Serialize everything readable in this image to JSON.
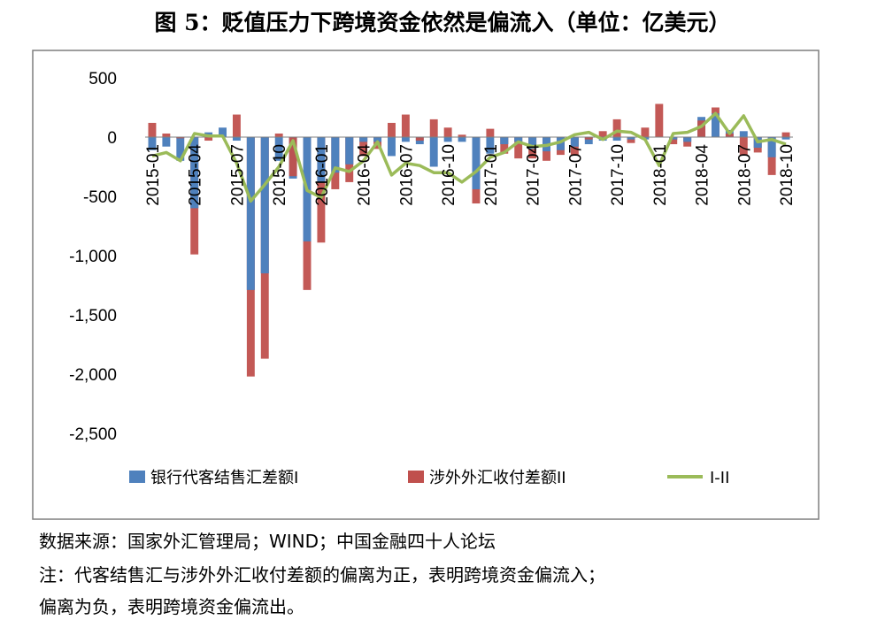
{
  "title": "图 5：贬值压力下跨境资金依然是偏流入（单位：亿美元）",
  "source": "数据来源：国家外汇管理局；WIND；中国金融四十人论坛",
  "note_line1": "注：代客结售汇与涉外外汇收付差额的偏离为正，表明跨境资金偏流入；",
  "note_line2": "偏离为负，表明跨境资金偏流出。",
  "chart_data": {
    "type": "bar",
    "ylim": [
      -2500,
      500
    ],
    "yticks": [
      500,
      0,
      -500,
      -1000,
      -1500,
      -2000,
      -2500
    ],
    "ytick_labels": [
      "500",
      "0",
      "-500",
      "-1,000",
      "-1,500",
      "-2,000",
      "-2,500"
    ],
    "categories": [
      "2015-01",
      "2015-02",
      "2015-03",
      "2015-04",
      "2015-05",
      "2015-06",
      "2015-07",
      "2015-08",
      "2015-09",
      "2015-10",
      "2015-11",
      "2015-12",
      "2016-01",
      "2016-02",
      "2016-03",
      "2016-04",
      "2016-05",
      "2016-06",
      "2016-07",
      "2016-08",
      "2016-09",
      "2016-10",
      "2016-11",
      "2016-12",
      "2017-01",
      "2017-02",
      "2017-03",
      "2017-04",
      "2017-05",
      "2017-06",
      "2017-07",
      "2017-08",
      "2017-09",
      "2017-10",
      "2017-11",
      "2017-12",
      "2018-01",
      "2018-02",
      "2018-03",
      "2018-04",
      "2018-05",
      "2018-06",
      "2018-07",
      "2018-08",
      "2018-09",
      "2018-10"
    ],
    "xtick_labels": [
      {
        "index": 0,
        "label": "2015-01"
      },
      {
        "index": 3,
        "label": "2015-04"
      },
      {
        "index": 6,
        "label": "2015-07"
      },
      {
        "index": 9,
        "label": "2015-10"
      },
      {
        "index": 12,
        "label": "2016-01"
      },
      {
        "index": 15,
        "label": "2016-04"
      },
      {
        "index": 18,
        "label": "2016-07"
      },
      {
        "index": 21,
        "label": "2016-10"
      },
      {
        "index": 24,
        "label": "2017-01"
      },
      {
        "index": 27,
        "label": "2017-04"
      },
      {
        "index": 30,
        "label": "2017-07"
      },
      {
        "index": 33,
        "label": "2017-10"
      },
      {
        "index": 36,
        "label": "2018-01"
      },
      {
        "index": 39,
        "label": "2018-04"
      },
      {
        "index": 42,
        "label": "2018-07"
      },
      {
        "index": 45,
        "label": "2018-10"
      }
    ],
    "series": [
      {
        "name": "银行代客结售汇差额I",
        "type": "bar",
        "color": "#4f81bd",
        "values": [
          -110,
          -80,
          -200,
          -600,
          40,
          80,
          -30,
          -1290,
          -1150,
          -200,
          -350,
          -880,
          -380,
          -300,
          -230,
          -40,
          -40,
          -160,
          -40,
          -60,
          -250,
          -40,
          -40,
          -440,
          -140,
          -60,
          -40,
          -100,
          -120,
          -110,
          -80,
          -60,
          -30,
          -30,
          -20,
          -20,
          0,
          -20,
          -40,
          170,
          200,
          60,
          50,
          -90,
          -170,
          -20
        ]
      },
      {
        "name": "涉外外汇收付差额II",
        "type": "bar",
        "color": "#c0504d",
        "values": [
          120,
          30,
          -10,
          -990,
          -30,
          0,
          190,
          -2020,
          -1870,
          30,
          -330,
          -1290,
          -890,
          -440,
          -380,
          -160,
          -100,
          120,
          190,
          -30,
          150,
          80,
          20,
          -560,
          70,
          -140,
          -180,
          -180,
          -200,
          -150,
          -150,
          -20,
          50,
          150,
          -50,
          80,
          280,
          -60,
          -80,
          140,
          250,
          30,
          -150,
          -130,
          -320,
          40
        ]
      },
      {
        "name": "I-II",
        "type": "line",
        "color": "#9bbb59",
        "values": [
          -160,
          -130,
          -200,
          30,
          10,
          10,
          -220,
          -540,
          -400,
          -250,
          -30,
          -450,
          -510,
          -260,
          -290,
          -200,
          -40,
          -320,
          -220,
          -240,
          -300,
          -300,
          -380,
          -290,
          -170,
          -130,
          -40,
          -80,
          -70,
          -40,
          20,
          40,
          -20,
          50,
          40,
          -20,
          -240,
          30,
          40,
          90,
          200,
          30,
          180,
          -40,
          -20,
          -60
        ]
      }
    ]
  }
}
